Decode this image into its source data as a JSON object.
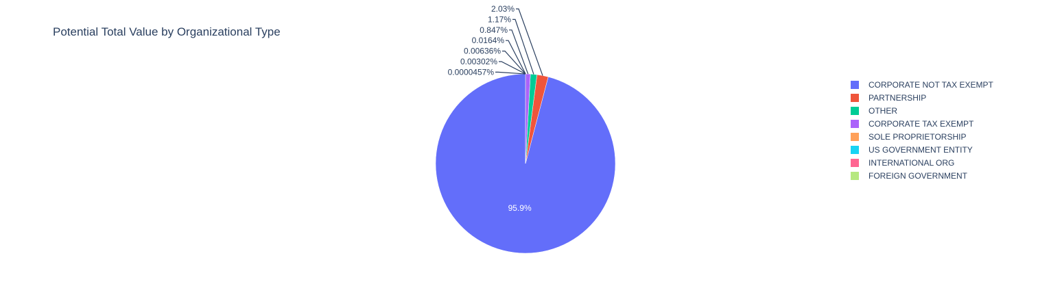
{
  "chart_data": {
    "type": "pie",
    "title": "Potential Total Value by Organizational Type",
    "legend_position": "right",
    "slices": [
      {
        "label": "CORPORATE NOT TAX EXEMPT",
        "percent": 95.9,
        "text": "95.9%",
        "color": "#636efa"
      },
      {
        "label": "PARTNERSHIP",
        "percent": 2.03,
        "text": "2.03%",
        "color": "#ef553b"
      },
      {
        "label": "OTHER",
        "percent": 1.17,
        "text": "1.17%",
        "color": "#00cc96"
      },
      {
        "label": "CORPORATE TAX EXEMPT",
        "percent": 0.847,
        "text": "0.847%",
        "color": "#ab63fa"
      },
      {
        "label": "SOLE PROPRIETORSHIP",
        "percent": 0.0164,
        "text": "0.0164%",
        "color": "#ffa15a"
      },
      {
        "label": "US GOVERNMENT ENTITY",
        "percent": 0.00636,
        "text": "0.00636%",
        "color": "#19d3f3"
      },
      {
        "label": "INTERNATIONAL ORG",
        "percent": 0.00302,
        "text": "0.00302%",
        "color": "#ff6692"
      },
      {
        "label": "FOREIGN GOVERNMENT",
        "percent": 4.57e-05,
        "text": "0.0000457%",
        "color": "#b6e880"
      }
    ]
  }
}
